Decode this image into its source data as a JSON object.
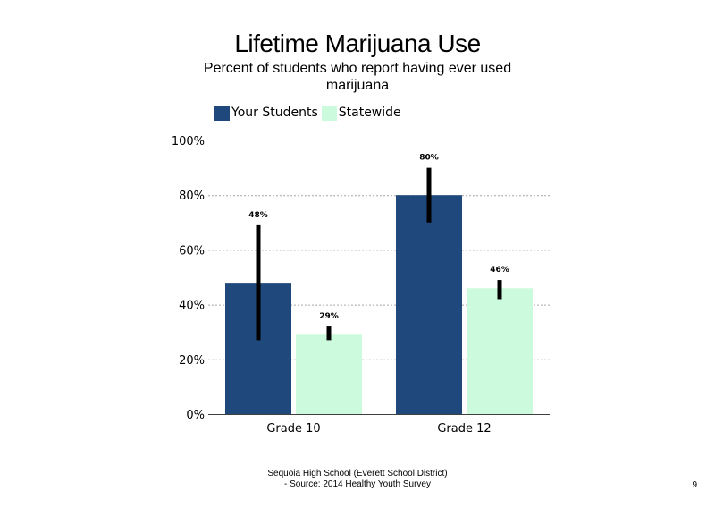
{
  "slide": {
    "footer_line1": "Sequoia High School (Everett School District)",
    "footer_line2": "- Source: 2014 Healthy Youth Survey",
    "page_number": "9"
  },
  "chart_data": {
    "type": "bar",
    "title": "Lifetime Marijuana Use",
    "subtitle": "Percent of students who report having ever used marijuana",
    "categories": [
      "Grade 10",
      "Grade 12"
    ],
    "series": [
      {
        "name": "Your Students",
        "color": "#1f497d",
        "values": [
          48,
          80
        ],
        "labels": [
          "48%",
          "80%"
        ],
        "error_low": [
          27,
          70
        ],
        "error_high": [
          69,
          90
        ]
      },
      {
        "name": "Statewide",
        "color": "#ccfadc",
        "values": [
          29,
          46
        ],
        "labels": [
          "29%",
          "46%"
        ],
        "error_low": [
          27,
          42
        ],
        "error_high": [
          32,
          49
        ]
      }
    ],
    "y_ticks": [
      "0%",
      "20%",
      "40%",
      "60%",
      "80%",
      "100%"
    ],
    "y_tick_values": [
      0,
      20,
      40,
      60,
      80,
      100
    ],
    "ylim": [
      0,
      100
    ],
    "grid": true,
    "legend_position": "top-left",
    "xlabel": "",
    "ylabel": ""
  }
}
